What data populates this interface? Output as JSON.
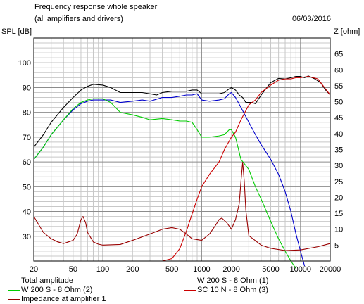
{
  "header": {
    "title": "Frequency response whole speaker",
    "subtitle": "(all amplifiers and drivers)",
    "date": "06/03/2016"
  },
  "chart_data": {
    "type": "line",
    "xscale": "log",
    "xlim": [
      20,
      20000
    ],
    "ylabel": "SPL [dB]",
    "ylim": [
      20,
      110
    ],
    "y2label": "Z [ohm]",
    "y2lim": [
      0,
      70
    ],
    "x_ticks": [
      "20",
      "50",
      "100",
      "200",
      "500",
      "1000",
      "2000",
      "5000",
      "10000",
      "20000"
    ],
    "y_ticks": [
      "30",
      "40",
      "50",
      "60",
      "70",
      "80",
      "90",
      "100"
    ],
    "y2_ticks": [
      "5",
      "10",
      "15",
      "20",
      "25",
      "30",
      "35",
      "40",
      "45",
      "50",
      "55",
      "60",
      "65"
    ],
    "grid": true,
    "legend_placement": "bottom",
    "series": [
      {
        "name": "Total amplitude",
        "axis": "left",
        "color": "#000000",
        "x": [
          20,
          25,
          30,
          40,
          50,
          60,
          70,
          80,
          100,
          120,
          150,
          200,
          250,
          300,
          350,
          400,
          500,
          600,
          700,
          800,
          900,
          1000,
          1200,
          1500,
          1700,
          1900,
          2000,
          2200,
          2400,
          2600,
          2800,
          3000,
          3200,
          3500,
          4000,
          5000,
          6000,
          7000,
          8000,
          9000,
          10000,
          11000,
          12000,
          14000,
          16000,
          18000,
          20000
        ],
        "y": [
          66,
          71,
          76,
          82,
          86,
          89,
          90.5,
          91.3,
          91,
          90,
          88,
          88,
          88,
          87.5,
          87,
          88,
          88.5,
          88.5,
          88.5,
          89,
          89,
          87.5,
          87.5,
          87.5,
          88,
          89.5,
          90,
          89,
          87,
          86,
          84,
          84,
          84,
          83.5,
          87,
          92,
          93.7,
          93.5,
          94,
          94.5,
          94.5,
          94,
          94.7,
          93.5,
          92,
          89,
          87
        ]
      },
      {
        "name": "W 200 S - 8 Ohm (1)",
        "axis": "left",
        "color": "#0000cc",
        "x": [
          20,
          25,
          30,
          40,
          50,
          60,
          70,
          80,
          100,
          120,
          150,
          200,
          250,
          300,
          400,
          500,
          600,
          700,
          800,
          900,
          1000,
          1200,
          1500,
          1700,
          1900,
          2000,
          2200,
          2500,
          3000,
          3500,
          4000,
          5000,
          6000,
          7000,
          8000,
          9000,
          10000,
          11000
        ],
        "y": [
          61,
          66,
          71,
          77,
          81,
          83.5,
          84.5,
          85,
          85,
          85,
          84,
          84.5,
          85,
          84.5,
          86,
          86,
          86.5,
          87,
          87,
          87.5,
          85,
          84.5,
          85,
          85.5,
          87.5,
          88,
          86,
          82,
          76,
          71,
          67,
          61,
          55,
          48,
          40,
          31,
          24,
          18
        ]
      },
      {
        "name": "W 200 S - 8 Ohm (2)",
        "axis": "left",
        "color": "#00cc00",
        "x": [
          20,
          25,
          30,
          40,
          50,
          60,
          70,
          80,
          100,
          120,
          150,
          200,
          250,
          300,
          400,
          500,
          600,
          700,
          800,
          900,
          1000,
          1200,
          1500,
          1700,
          1900,
          2000,
          2200,
          2500,
          3000,
          3500,
          4000,
          5000,
          6000,
          7000,
          8000,
          9000
        ],
        "y": [
          61,
          66,
          71,
          77,
          81.5,
          84,
          85,
          85.5,
          85.5,
          84,
          80,
          79,
          78,
          77,
          77.5,
          77,
          76.5,
          76.5,
          76,
          73,
          70,
          70,
          70.5,
          71,
          73,
          73,
          70,
          61,
          57,
          50,
          45,
          36,
          29,
          24,
          20,
          17
        ]
      },
      {
        "name": "SC 10 N - 8 Ohm (3)",
        "axis": "left",
        "color": "#cc0000",
        "x": [
          20,
          400,
          500,
          600,
          700,
          800,
          900,
          1000,
          1200,
          1500,
          1700,
          2000,
          2200,
          2500,
          3000,
          3500,
          4000,
          5000,
          6000,
          7000,
          8000,
          9000,
          10000,
          12000,
          15000,
          20000
        ],
        "y": [
          20,
          20,
          21,
          25,
          32,
          39,
          45,
          50,
          55,
          60,
          65,
          70,
          72,
          77,
          83,
          85,
          88,
          91,
          93,
          93.5,
          93.5,
          94,
          94,
          94.5,
          93.5,
          87
        ]
      },
      {
        "name": "Impedance at amplifier 1",
        "axis": "right",
        "color": "#990000",
        "x": [
          20,
          25,
          30,
          35,
          40,
          50,
          55,
          60,
          63,
          67,
          70,
          80,
          90,
          100,
          150,
          200,
          300,
          400,
          500,
          600,
          700,
          800,
          1000,
          1200,
          1400,
          1500,
          1600,
          1800,
          2000,
          2200,
          2400,
          2500,
          2600,
          2700,
          2800,
          3000,
          4000,
          5000,
          7000,
          10000,
          15000,
          20000
        ],
        "y": [
          14,
          9,
          7,
          6,
          5.5,
          6.5,
          8.5,
          13,
          14,
          12,
          9,
          6,
          5.3,
          5,
          5.2,
          6.5,
          8.5,
          10,
          10.5,
          10,
          8.5,
          7,
          6.5,
          8.5,
          11.5,
          13,
          13.5,
          12,
          10,
          13,
          18,
          25,
          31,
          25,
          16,
          8,
          5,
          4,
          3.3,
          3.5,
          4.5,
          5.5
        ]
      }
    ]
  },
  "legend": [
    {
      "label": "Total amplitude",
      "color": "#000000"
    },
    {
      "label": "W 200 S - 8 Ohm (1)",
      "color": "#0000cc"
    },
    {
      "label": "W 200 S - 8 Ohm (2)",
      "color": "#00cc00"
    },
    {
      "label": "SC 10 N - 8 Ohm (3)",
      "color": "#cc0000"
    },
    {
      "label": "Impedance at amplifier 1",
      "color": "#990000"
    }
  ]
}
